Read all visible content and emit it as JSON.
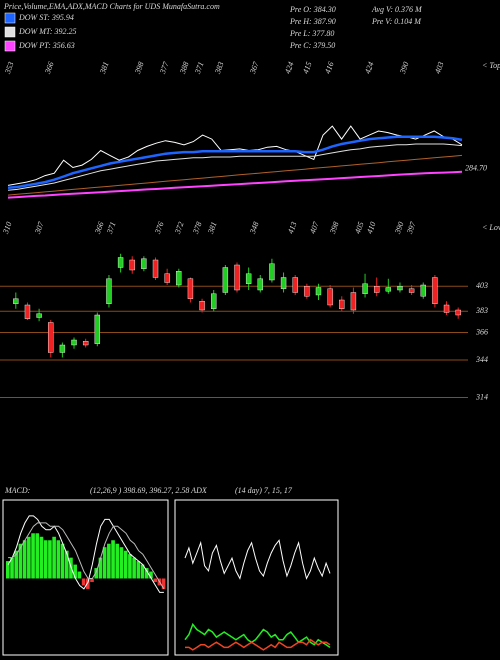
{
  "chart_data": [
    {
      "type": "line",
      "title": "Price,Volume,EMA,ADX,MACD Charts for UDS MunafaSutra.com",
      "stats": [
        "Pre O: 384.30",
        "Pre H: 387.90",
        "Pre L: 377.80",
        "Pre C: 379.50",
        "Avg V: 0.376  M",
        "Pre  V: 0.104  M"
      ],
      "tops_label": "< Tops",
      "tops": [
        353,
        366,
        381,
        398,
        377,
        388,
        371,
        383,
        367,
        424,
        415,
        416,
        424,
        390,
        403
      ],
      "end_label": "284.70",
      "ylim": [
        250,
        420
      ],
      "series": [
        {
          "color": "#ffffff",
          "values": [
            268,
            270,
            272,
            275,
            280,
            283,
            299,
            290,
            293,
            300,
            311,
            305,
            299,
            303,
            311,
            316,
            320,
            323,
            321,
            318,
            322,
            330,
            325,
            311,
            312,
            313,
            311,
            312,
            315,
            316,
            312,
            310,
            305,
            300,
            330,
            341,
            325,
            341,
            325,
            330,
            335,
            333,
            330,
            328,
            325,
            330,
            335,
            328,
            325,
            318
          ]
        },
        {
          "name": "DOW ST: 395.94",
          "color": "#1e64ff",
          "values": [
            265,
            266,
            268,
            270,
            272,
            275,
            279,
            283,
            286,
            289,
            292,
            295,
            297,
            299,
            301,
            303,
            305,
            307,
            308,
            309,
            309,
            310,
            310,
            310,
            310,
            310,
            310,
            310,
            310,
            310,
            310,
            310,
            309,
            309,
            312,
            316,
            319,
            321,
            323,
            325,
            326,
            327,
            328,
            328,
            328,
            328,
            328,
            327,
            326,
            324
          ]
        },
        {
          "name": "DOW MT: 392.25",
          "color": "#e0e0e0",
          "values": [
            262,
            263,
            265,
            267,
            269,
            271,
            274,
            277,
            280,
            283,
            286,
            288,
            290,
            292,
            294,
            296,
            298,
            299,
            300,
            301,
            302,
            302,
            303,
            303,
            303,
            304,
            304,
            304,
            304,
            304,
            304,
            304,
            304,
            304,
            306,
            308,
            310,
            312,
            313,
            315,
            316,
            317,
            318,
            318,
            319,
            319,
            319,
            319,
            318,
            317
          ]
        },
        {
          "color": "#b0602a",
          "values": [
            256,
            257,
            258,
            259,
            260,
            261,
            262,
            263,
            264,
            265,
            266,
            267,
            268,
            269,
            270,
            271,
            272,
            273,
            274,
            275,
            276,
            277,
            278,
            279,
            280,
            281,
            282,
            283,
            284,
            285,
            286,
            287,
            288,
            289,
            290,
            291,
            292,
            293,
            294,
            295,
            296,
            297,
            298,
            299,
            300,
            301,
            302,
            303,
            304,
            305
          ]
        },
        {
          "name": "DOW PT: 356.63",
          "color": "#ff44ff",
          "values": [
            253,
            253.6,
            254.3,
            255,
            255.6,
            256.3,
            257,
            257.6,
            258.3,
            259,
            259.6,
            260.3,
            261,
            261.6,
            262.3,
            263,
            263.6,
            264.3,
            265,
            265.6,
            266.3,
            267,
            267.6,
            268.3,
            269,
            269.6,
            270.3,
            271,
            271.6,
            272.3,
            273,
            273.6,
            274.3,
            275,
            275.6,
            276.3,
            277,
            277.6,
            278.3,
            279,
            279.6,
            280.3,
            281,
            281.6,
            282.3,
            283,
            283.4,
            283.8,
            284.2,
            284.7
          ]
        }
      ]
    },
    {
      "type": "candlestick",
      "lows_label": "< Lows",
      "lows": [
        310,
        307,
        366,
        371,
        376,
        372,
        378,
        381,
        348,
        413,
        407,
        398,
        405,
        410,
        390,
        397
      ],
      "ylim": [
        296,
        452
      ],
      "yticks": [
        403,
        383,
        366,
        344,
        314
      ],
      "up_color": "#22cc22",
      "down_color": "#ee2222",
      "level_color": "#8b4a1a",
      "open": [
        389,
        388,
        378,
        374,
        350,
        356,
        359,
        357,
        389,
        418,
        424,
        417,
        424,
        413,
        404,
        409,
        391,
        385,
        398,
        420,
        405,
        400,
        408,
        401,
        410,
        403,
        396,
        401,
        392,
        398,
        397,
        403,
        399,
        400,
        401,
        395,
        410,
        388,
        384
      ],
      "high": [
        398,
        390,
        385,
        376,
        358,
        362,
        361,
        382,
        412,
        429,
        427,
        427,
        426,
        417,
        417,
        410,
        393,
        400,
        420,
        422,
        418,
        412,
        425,
        414,
        412,
        405,
        405,
        404,
        395,
        402,
        413,
        410,
        409,
        406,
        404,
        406,
        412,
        391,
        386
      ],
      "low": [
        385,
        376,
        375,
        346,
        346,
        353,
        354,
        355,
        386,
        414,
        413,
        415,
        408,
        404,
        402,
        390,
        382,
        383,
        396,
        398,
        400,
        398,
        406,
        398,
        396,
        393,
        392,
        386,
        383,
        381,
        394,
        395,
        397,
        398,
        396,
        393,
        386,
        380,
        377
      ],
      "close": [
        393,
        377,
        381,
        350,
        356,
        360,
        356,
        380,
        409,
        426,
        416,
        425,
        410,
        406,
        415,
        393,
        384,
        397,
        418,
        400,
        413,
        409,
        421,
        410,
        398,
        395,
        402,
        388,
        385,
        384,
        405,
        398,
        402,
        403,
        398,
        404,
        389,
        382,
        380
      ]
    },
    {
      "type": "macd",
      "title": "MACD:",
      "subtitle": "(12,26,9 ) 398.69, 396.27, 2.58 ADX",
      "ylim": [
        -22,
        22
      ],
      "histogram": [
        5,
        6,
        8,
        10,
        11,
        12,
        13,
        13,
        12,
        11,
        11,
        12,
        11,
        10,
        8,
        6,
        4,
        2,
        -2,
        -3,
        -1,
        3,
        6,
        9,
        10,
        11,
        10,
        9,
        8,
        7,
        6,
        5,
        4,
        3,
        2,
        -1,
        -2,
        -3
      ],
      "series": [
        {
          "color": "#ffffff",
          "values": [
            4,
            6,
            9,
            13,
            16,
            18,
            18,
            17,
            15,
            14,
            14,
            15,
            13,
            10,
            7,
            3,
            0,
            -2,
            -3,
            -1,
            4,
            10,
            15,
            17,
            17,
            15,
            13,
            11,
            9,
            7,
            6,
            5,
            4,
            2,
            0,
            -2,
            -4,
            -4
          ]
        },
        {
          "color": "#bbbbbb",
          "values": [
            6,
            6,
            7,
            9,
            11,
            13,
            15,
            16,
            16,
            16,
            15,
            15,
            15,
            14,
            12,
            10,
            8,
            5,
            2,
            0,
            0,
            2,
            6,
            10,
            13,
            15,
            15,
            14,
            13,
            11,
            10,
            8,
            7,
            5,
            3,
            1,
            -1,
            -3
          ]
        }
      ]
    },
    {
      "type": "adx",
      "title": "(14  day) 7, 15, 17",
      "ylim": [
        0,
        60
      ],
      "series": [
        {
          "color": "#ffffff",
          "values": [
            38,
            42,
            36,
            40,
            44,
            35,
            33,
            40,
            43,
            37,
            32,
            35,
            38,
            33,
            30,
            36,
            41,
            44,
            38,
            33,
            31,
            36,
            40,
            43,
            45,
            37,
            31,
            35,
            40,
            44,
            36,
            30,
            33,
            38,
            34,
            31,
            36,
            32
          ]
        },
        {
          "color": "#22ee22",
          "values": [
            6,
            8,
            12,
            10,
            9,
            8,
            10,
            9,
            7,
            8,
            9,
            8,
            7,
            6,
            7,
            8,
            6,
            5,
            6,
            8,
            10,
            9,
            7,
            8,
            6,
            6,
            8,
            9,
            7,
            5,
            6,
            7,
            5,
            4,
            6,
            5,
            4,
            3
          ]
        },
        {
          "color": "#ee4422",
          "values": [
            3,
            3,
            2,
            3,
            4,
            4,
            3,
            4,
            5,
            4,
            3,
            3,
            4,
            5,
            4,
            3,
            4,
            5,
            4,
            3,
            2,
            3,
            4,
            3,
            5,
            4,
            3,
            3,
            4,
            5,
            5,
            4,
            6,
            5,
            4,
            5,
            5,
            4
          ]
        }
      ]
    }
  ]
}
